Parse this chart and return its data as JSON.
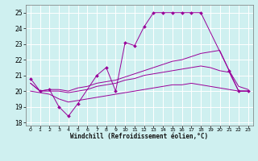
{
  "xlabel": "Windchill (Refroidissement éolien,°C)",
  "bg_color": "#cff0f0",
  "line_color": "#990099",
  "xlim": [
    -0.5,
    23.5
  ],
  "ylim": [
    17.8,
    25.5
  ],
  "yticks": [
    18,
    19,
    20,
    21,
    22,
    23,
    24,
    25
  ],
  "xticks": [
    0,
    1,
    2,
    3,
    4,
    5,
    6,
    7,
    8,
    9,
    10,
    11,
    12,
    13,
    14,
    15,
    16,
    17,
    18,
    19,
    20,
    21,
    22,
    23
  ],
  "lines": [
    {
      "x": [
        0,
        1,
        2,
        3,
        4,
        5,
        7,
        8,
        9,
        10,
        11,
        12,
        13,
        14,
        15,
        16,
        17,
        18,
        21,
        22,
        23
      ],
      "y": [
        20.8,
        20.0,
        20.1,
        19.0,
        18.4,
        19.2,
        21.0,
        21.5,
        20.0,
        23.1,
        22.9,
        24.1,
        25.0,
        25.0,
        25.0,
        25.0,
        25.0,
        25.0,
        21.3,
        20.0,
        20.0
      ],
      "marker": true
    },
    {
      "x": [
        0,
        1,
        2,
        3,
        4,
        5,
        6,
        7,
        8,
        9,
        10,
        11,
        12,
        13,
        14,
        15,
        16,
        17,
        18,
        19,
        20,
        21,
        22,
        23
      ],
      "y": [
        20.5,
        20.0,
        20.1,
        20.1,
        20.0,
        20.2,
        20.3,
        20.5,
        20.6,
        20.7,
        20.9,
        21.1,
        21.3,
        21.5,
        21.7,
        21.9,
        22.0,
        22.2,
        22.4,
        22.5,
        22.6,
        21.3,
        20.3,
        20.1
      ],
      "marker": false
    },
    {
      "x": [
        0,
        1,
        2,
        3,
        4,
        5,
        6,
        7,
        8,
        9,
        10,
        11,
        12,
        13,
        14,
        15,
        16,
        17,
        18,
        19,
        20,
        21,
        22,
        23
      ],
      "y": [
        20.5,
        20.0,
        20.0,
        20.0,
        19.9,
        20.0,
        20.1,
        20.3,
        20.4,
        20.5,
        20.7,
        20.8,
        21.0,
        21.1,
        21.2,
        21.3,
        21.4,
        21.5,
        21.6,
        21.5,
        21.3,
        21.2,
        20.0,
        20.0
      ],
      "marker": false
    },
    {
      "x": [
        0,
        1,
        2,
        3,
        4,
        5,
        6,
        7,
        8,
        9,
        10,
        11,
        12,
        13,
        14,
        15,
        16,
        17,
        18,
        19,
        20,
        21,
        22,
        23
      ],
      "y": [
        20.0,
        19.9,
        19.8,
        19.5,
        19.3,
        19.4,
        19.5,
        19.6,
        19.7,
        19.8,
        19.9,
        20.0,
        20.1,
        20.2,
        20.3,
        20.4,
        20.4,
        20.5,
        20.4,
        20.3,
        20.2,
        20.1,
        20.0,
        20.0
      ],
      "marker": false
    }
  ]
}
